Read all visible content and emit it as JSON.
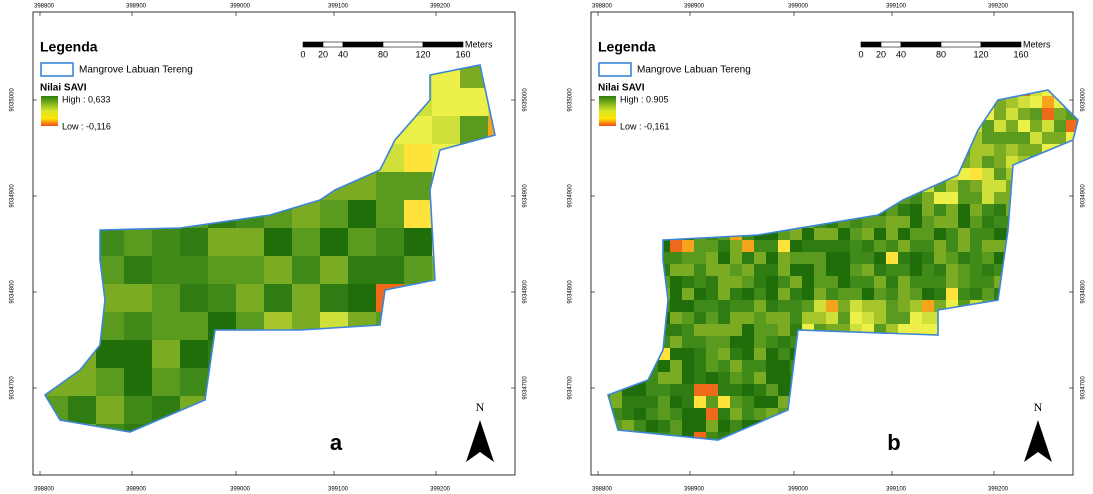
{
  "panels": [
    {
      "label": "a",
      "legend": {
        "title": "Legenda",
        "boundary": "Mangrove Labuan Tereng",
        "index_title": "Nilai SAVI",
        "high": "High : 0,633",
        "low": "Low : -0,116"
      },
      "scale_bar": {
        "ticks": [
          0,
          20,
          40,
          80,
          120,
          160
        ],
        "unit": "Meters"
      },
      "north": "N",
      "x_labels": [
        398800,
        398900,
        399000,
        399100,
        399200
      ],
      "y_labels": [
        9035000,
        9034900,
        9034800,
        9034700
      ]
    },
    {
      "label": "b",
      "legend": {
        "title": "Legenda",
        "boundary": "Mangrove Labuan Tereng",
        "index_title": "Nilai SAVI",
        "high": "High : 0.905",
        "low": "Low : -0,161"
      },
      "scale_bar": {
        "ticks": [
          0,
          20,
          40,
          80,
          120,
          160
        ],
        "unit": "Meters"
      },
      "north": "N",
      "x_labels": [
        398800,
        398900,
        399000,
        399100,
        399200
      ],
      "y_labels": [
        9035000,
        9034900,
        9034800,
        9034700
      ]
    }
  ]
}
